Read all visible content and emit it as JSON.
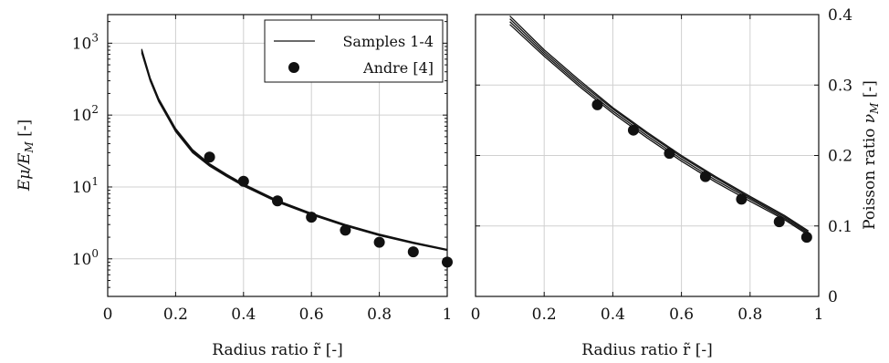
{
  "chart_data": [
    {
      "type": "line",
      "xlabel": "Radius ratio r̃ [-]",
      "ylabel": "Eμ/EM [-]",
      "ylabel_parts": {
        "main": "E",
        "sym": "μ",
        "sep": "/E",
        "sub": "M",
        "unit": " [-]"
      },
      "xlim": [
        0,
        1
      ],
      "ylim": [
        0.3,
        2500
      ],
      "yscale": "log",
      "grid": true,
      "legend_position": "top-right",
      "xticks": [
        "0",
        "0.2",
        "0.4",
        "0.6",
        "0.8",
        "1"
      ],
      "yticks": [
        {
          "value": 1,
          "base": "10",
          "exp": "0"
        },
        {
          "value": 10,
          "base": "10",
          "exp": "1"
        },
        {
          "value": 100,
          "base": "10",
          "exp": "2"
        },
        {
          "value": 1000,
          "base": "10",
          "exp": "3"
        }
      ],
      "series": [
        {
          "name": "Samples 1-4",
          "kind": "lines",
          "curves": [
            {
              "x": [
                0.1,
                0.125,
                0.15,
                0.2,
                0.25,
                0.3,
                0.35,
                0.4,
                0.5,
                0.6,
                0.7,
                0.8,
                0.9,
                1.0
              ],
              "y": [
                830,
                330,
                170,
                65,
                33,
                21,
                15,
                11,
                6.5,
                4.3,
                3.0,
                2.2,
                1.7,
                1.35
              ]
            },
            {
              "x": [
                0.1,
                0.125,
                0.15,
                0.2,
                0.25,
                0.3,
                0.35,
                0.4,
                0.5,
                0.6,
                0.7,
                0.8,
                0.9,
                1.0
              ],
              "y": [
                800,
                320,
                165,
                63,
                32,
                20.5,
                14.6,
                10.7,
                6.35,
                4.2,
                2.95,
                2.17,
                1.68,
                1.33
              ]
            },
            {
              "x": [
                0.1,
                0.125,
                0.15,
                0.2,
                0.25,
                0.3,
                0.35,
                0.4,
                0.5,
                0.6,
                0.7,
                0.8,
                0.9,
                1.0
              ],
              "y": [
                770,
                310,
                160,
                61,
                31,
                20,
                14.3,
                10.5,
                6.25,
                4.15,
                2.9,
                2.14,
                1.66,
                1.32
              ]
            },
            {
              "x": [
                0.1,
                0.125,
                0.15,
                0.2,
                0.25,
                0.3,
                0.35,
                0.4,
                0.5,
                0.6,
                0.7,
                0.8,
                0.9,
                1.0
              ],
              "y": [
                740,
                300,
                155,
                59,
                30,
                19.5,
                14,
                10.3,
                6.15,
                4.1,
                2.87,
                2.11,
                1.64,
                1.31
              ]
            }
          ]
        },
        {
          "name": "Andre [4]",
          "kind": "markers",
          "x": [
            0.3,
            0.4,
            0.5,
            0.6,
            0.7,
            0.8,
            0.9,
            1.0
          ],
          "y": [
            26,
            12,
            6.4,
            3.8,
            2.5,
            1.7,
            1.25,
            0.9
          ]
        }
      ]
    },
    {
      "type": "line",
      "xlabel": "Radius ratio r̃ [-]",
      "ylabel": "Poisson ratio νM [-]",
      "ylabel_parts": {
        "main": "Poisson ratio ",
        "sym": "ν",
        "sub": "M",
        "unit": " [-]"
      },
      "xlim": [
        0,
        1
      ],
      "ylim": [
        0,
        0.4
      ],
      "yscale": "linear",
      "grid": true,
      "yaxis_side": "right",
      "xticks": [
        "0",
        "0.2",
        "0.4",
        "0.6",
        "0.8",
        "1"
      ],
      "yticks": [
        "0",
        "0.1",
        "0.2",
        "0.3",
        "0.4"
      ],
      "series": [
        {
          "name": "Samples 1-4",
          "kind": "lines",
          "curves": [
            {
              "x": [
                0.1,
                0.2,
                0.3,
                0.4,
                0.5,
                0.6,
                0.7,
                0.8,
                0.9,
                0.97
              ],
              "y": [
                0.398,
                0.35,
                0.308,
                0.268,
                0.233,
                0.2,
                0.17,
                0.142,
                0.115,
                0.093
              ]
            },
            {
              "x": [
                0.1,
                0.2,
                0.3,
                0.4,
                0.5,
                0.6,
                0.7,
                0.8,
                0.9,
                0.97
              ],
              "y": [
                0.394,
                0.347,
                0.305,
                0.266,
                0.231,
                0.198,
                0.168,
                0.14,
                0.113,
                0.091
              ]
            },
            {
              "x": [
                0.1,
                0.2,
                0.3,
                0.4,
                0.5,
                0.6,
                0.7,
                0.8,
                0.9,
                0.97
              ],
              "y": [
                0.39,
                0.344,
                0.302,
                0.263,
                0.228,
                0.195,
                0.165,
                0.138,
                0.111,
                0.089
              ]
            },
            {
              "x": [
                0.1,
                0.2,
                0.3,
                0.4,
                0.5,
                0.6,
                0.7,
                0.8,
                0.9,
                0.97
              ],
              "y": [
                0.386,
                0.341,
                0.299,
                0.26,
                0.225,
                0.192,
                0.162,
                0.135,
                0.109,
                0.087
              ]
            }
          ]
        },
        {
          "name": "Andre [4]",
          "kind": "markers",
          "x": [
            0.355,
            0.46,
            0.565,
            0.67,
            0.775,
            0.885,
            0.965
          ],
          "y": [
            0.272,
            0.236,
            0.203,
            0.17,
            0.138,
            0.106,
            0.084
          ]
        }
      ]
    }
  ]
}
